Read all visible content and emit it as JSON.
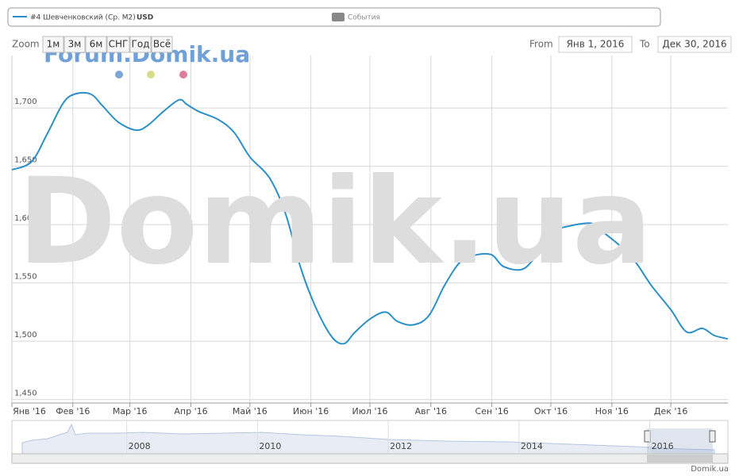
{
  "chart_data": {
    "type": "line",
    "legend_unit": "USD",
    "events_label": "События",
    "zoom_label": "Zoom",
    "zoom_buttons": [
      "1м",
      "3м",
      "6м",
      "СНГ",
      "Год",
      "Всё"
    ],
    "from_label": "From",
    "from": "Янв 1, 2016",
    "to_label": "To",
    "to": "Дек 30, 2016",
    "watermark_small": "Forum.Domik.ua",
    "watermark_big": "Domik.ua",
    "credits": "Domik.ua",
    "x": [
      1,
      11,
      19,
      27,
      33,
      41,
      47,
      55,
      64,
      70,
      78,
      86,
      90,
      96,
      106,
      114,
      122,
      132,
      140,
      148,
      156,
      164,
      170,
      175,
      183,
      191,
      197,
      205,
      213,
      221,
      229,
      237,
      245,
      251,
      261,
      269,
      277,
      285,
      296,
      302,
      310,
      318,
      326,
      336,
      344,
      352,
      358,
      365
    ],
    "series": [
      {
        "name": "#4 Шевченковский (Ср. М2)",
        "color": "#2b90c8",
        "values": [
          1647,
          1654,
          1678,
          1704,
          1712,
          1712,
          1702,
          1688,
          1681,
          1685,
          1697,
          1707,
          1703,
          1697,
          1690,
          1679,
          1658,
          1640,
          1610,
          1562,
          1527,
          1503,
          1498,
          1507,
          1519,
          1525,
          1517,
          1514,
          1522,
          1548,
          1568,
          1574,
          1574,
          1564,
          1562,
          1577,
          1594,
          1599,
          1601,
          1593,
          1582,
          1568,
          1548,
          1527,
          1508,
          1511,
          1505,
          1502
        ]
      }
    ],
    "xlim": [
      1,
      365
    ],
    "xticks": [
      {
        "value": 1,
        "label": "Янв '16"
      },
      {
        "value": 32,
        "label": "Фев '16"
      },
      {
        "value": 61,
        "label": "Мар '16"
      },
      {
        "value": 92,
        "label": "Апр '16"
      },
      {
        "value": 122,
        "label": "Май '16"
      },
      {
        "value": 153,
        "label": "Июн '16"
      },
      {
        "value": 183,
        "label": "Июл '16"
      },
      {
        "value": 214,
        "label": "Авг '16"
      },
      {
        "value": 245,
        "label": "Сен '16"
      },
      {
        "value": 275,
        "label": "Окт '16"
      },
      {
        "value": 306,
        "label": "Ноя '16"
      },
      {
        "value": 336,
        "label": "Дек '16"
      }
    ],
    "ylim": [
      1447,
      1745
    ],
    "yticks": [
      {
        "value": 1450,
        "label": "1,450"
      },
      {
        "value": 1500,
        "label": "1,500"
      },
      {
        "value": 1550,
        "label": "1,550"
      },
      {
        "value": 1600,
        "label": "1,600"
      },
      {
        "value": 1650,
        "label": "1,650"
      },
      {
        "value": 1700,
        "label": "1,700"
      }
    ],
    "grid": true,
    "navigator": {
      "xlim": [
        2006.05,
        2017.0
      ],
      "xticks": [
        2008,
        2010,
        2012,
        2014,
        2016
      ]
    }
  }
}
